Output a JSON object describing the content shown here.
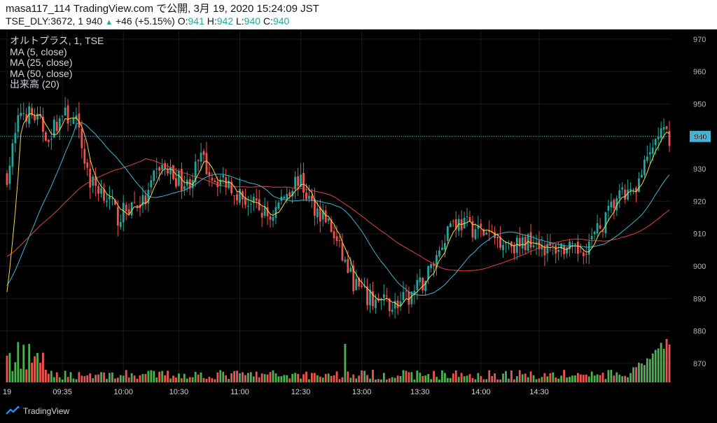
{
  "header": {
    "line1": "masa117_114 TradingView.com で公開, 3月 19, 2020 15:24:09 JST",
    "symbol_prefix": "TSE_DLY:3672, 1 940",
    "change": "+46 (+5.15%)",
    "o_label": "O:",
    "o_value": "941",
    "h_label": "H:",
    "h_value": "942",
    "l_label": "L:",
    "l_value": "940",
    "c_label": "C:",
    "c_value": "940"
  },
  "legend": {
    "title": "オルトプラス, 1, TSE",
    "ma5": "MA (5, close)",
    "ma25": "MA (25, close)",
    "ma50": "MA (50, close)",
    "volume": "出来高 (20)"
  },
  "brand": "TradingView",
  "colors": {
    "up": "#26a69a",
    "down": "#ef5350",
    "ma5": "#f5d547",
    "ma25": "#3fb4d4",
    "ma50": "#e0433c",
    "vol_up": "#4caf50",
    "vol_down": "#ef5350",
    "price_line": "#3fb4d4",
    "background": "#000000",
    "grid": "#1a1a1a"
  },
  "chart_data": {
    "type": "candlestick",
    "y_axis": {
      "ticks": [
        870,
        880,
        890,
        900,
        910,
        920,
        930,
        940,
        950,
        960,
        970
      ],
      "range": [
        865,
        973
      ]
    },
    "x_axis": {
      "ticks": [
        "19",
        "09:35",
        "10:00",
        "10:30",
        "11:00",
        "12:30",
        "13:00",
        "13:30",
        "14:00",
        "14:30"
      ]
    },
    "last_price": 940,
    "price_path": [
      [
        0,
        928
      ],
      [
        5,
        948
      ],
      [
        10,
        946
      ],
      [
        15,
        940
      ],
      [
        20,
        947
      ],
      [
        25,
        944
      ],
      [
        30,
        926
      ],
      [
        35,
        923
      ],
      [
        40,
        915
      ],
      [
        45,
        919
      ],
      [
        50,
        920
      ],
      [
        55,
        931
      ],
      [
        60,
        928
      ],
      [
        65,
        925
      ],
      [
        70,
        933
      ],
      [
        75,
        927
      ],
      [
        80,
        926
      ],
      [
        85,
        921
      ],
      [
        90,
        918
      ],
      [
        95,
        915
      ],
      [
        100,
        922
      ],
      [
        105,
        927
      ],
      [
        110,
        919
      ],
      [
        115,
        915
      ],
      [
        120,
        905
      ],
      [
        125,
        895
      ],
      [
        130,
        890
      ],
      [
        135,
        889
      ],
      [
        140,
        888
      ],
      [
        145,
        890
      ],
      [
        150,
        895
      ],
      [
        155,
        903
      ],
      [
        160,
        914
      ],
      [
        165,
        913
      ],
      [
        170,
        911
      ],
      [
        175,
        909
      ],
      [
        180,
        908
      ],
      [
        185,
        906
      ],
      [
        190,
        909
      ],
      [
        195,
        905
      ],
      [
        200,
        906
      ],
      [
        205,
        904
      ],
      [
        210,
        907
      ],
      [
        215,
        913
      ],
      [
        220,
        921
      ],
      [
        225,
        922
      ],
      [
        230,
        930
      ],
      [
        235,
        941
      ],
      [
        239,
        940
      ]
    ],
    "ma_start": [
      {
        "name": "MA (5, close)",
        "start": 892
      },
      {
        "name": "MA (25, close)",
        "start": 894
      },
      {
        "name": "MA (50, close)",
        "start": 903
      }
    ],
    "volume_max": 880
  }
}
